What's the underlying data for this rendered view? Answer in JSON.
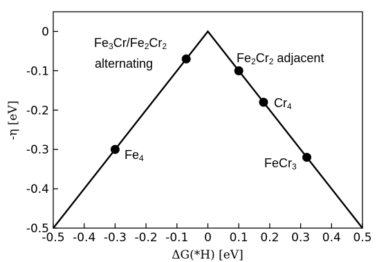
{
  "chart_data": {
    "type": "scatter",
    "xlabel": "ΔG(*H) [eV]",
    "ylabel": "-η [eV]",
    "xlim": [
      -0.5,
      0.5
    ],
    "ylim": [
      -0.5,
      0.05
    ],
    "grid": false,
    "x_ticks": [
      -0.5,
      -0.4,
      -0.3,
      -0.2,
      -0.1,
      0,
      0.1,
      0.2,
      0.3,
      0.4,
      0.5
    ],
    "x_tick_labels": [
      "-0.5",
      "-0.4",
      "-0.3",
      "-0.2",
      "-0.1",
      "0",
      "0.1",
      "0.2",
      "0.3",
      "0.4",
      "0.5"
    ],
    "y_ticks": [
      0,
      -0.1,
      -0.2,
      -0.3,
      -0.4,
      -0.5
    ],
    "y_tick_labels": [
      "0",
      "-0.1",
      "-0.2",
      "-0.3",
      "-0.4",
      "-0.5"
    ],
    "volcano_line": [
      {
        "x": -0.5,
        "y": -0.5
      },
      {
        "x": 0,
        "y": 0
      },
      {
        "x": 0.5,
        "y": -0.5
      }
    ],
    "points": [
      {
        "x": -0.3,
        "y": -0.3,
        "label": "Fe4"
      },
      {
        "x": -0.07,
        "y": -0.07,
        "label": "Fe3Cr/Fe2Cr2 alternating"
      },
      {
        "x": 0.1,
        "y": -0.1,
        "label": "Fe2Cr2 adjacent"
      },
      {
        "x": 0.18,
        "y": -0.18,
        "label": "Cr4"
      },
      {
        "x": 0.32,
        "y": -0.32,
        "label": "FeCr3"
      }
    ],
    "colors": {
      "line": "#000000",
      "marker": "#000000"
    }
  }
}
